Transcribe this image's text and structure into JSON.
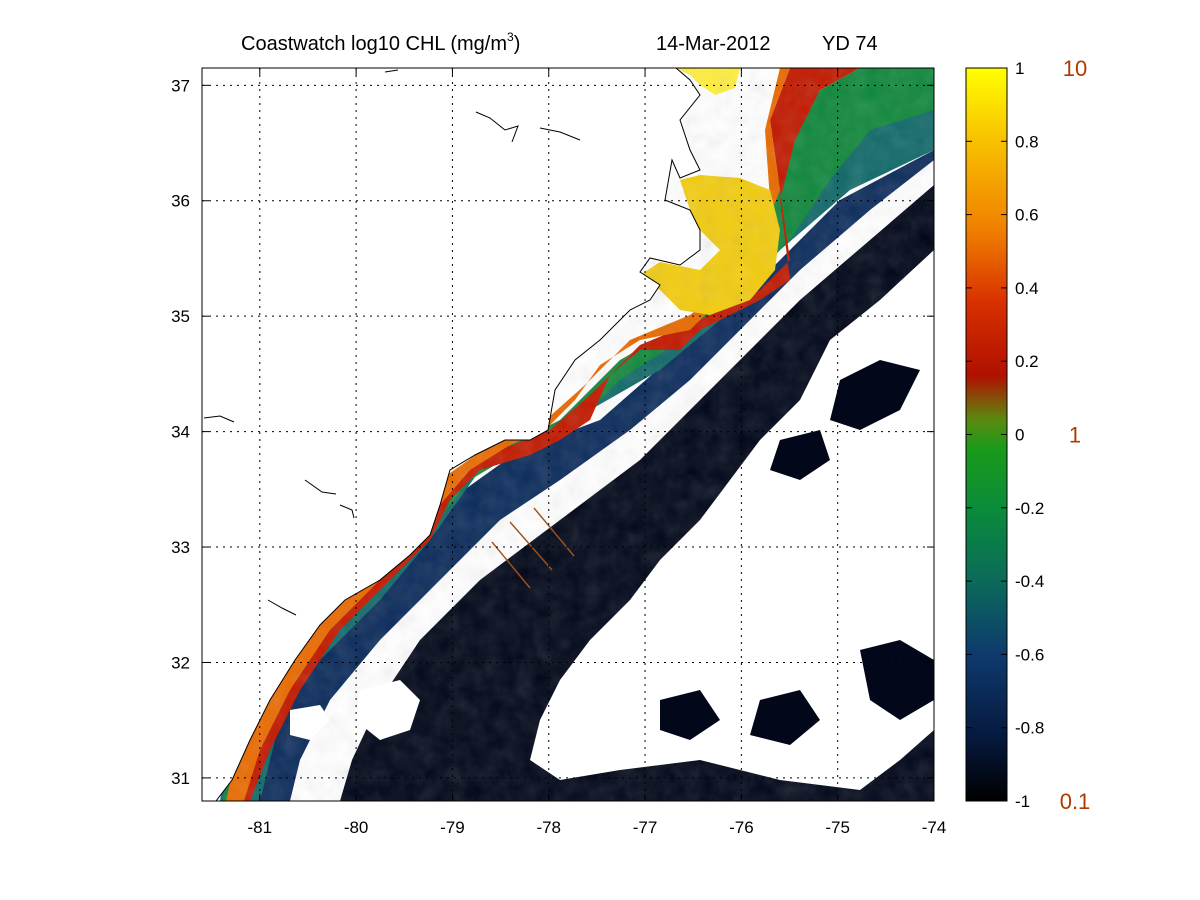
{
  "chart_data": {
    "type": "heatmap",
    "title": {
      "main": "Coastwatch  log10  CHL (mg/m",
      "superscript": "3",
      "close": ")",
      "date": "14-Mar-2012",
      "yearday": "YD 74"
    },
    "xlabel": "",
    "ylabel": "",
    "x_ticks": [
      "-81",
      "-80",
      "-79",
      "-78",
      "-77",
      "-76",
      "-75",
      "-74"
    ],
    "y_ticks": [
      "31",
      "32",
      "33",
      "34",
      "35",
      "36",
      "37"
    ],
    "xlim": [
      -81.6,
      -74
    ],
    "ylim": [
      30.8,
      37.15
    ],
    "grid": true,
    "colorbar": {
      "range": [
        -1,
        1
      ],
      "tick_labels": [
        "1",
        "0.8",
        "0.6",
        "0.4",
        "0.2",
        "0",
        "-0.2",
        "-0.4",
        "-0.6",
        "-0.8",
        "-1"
      ],
      "secondary_labels": [
        "10",
        "1",
        "0.1"
      ],
      "colormap": [
        "#000000",
        "#061a40",
        "#0e3a6e",
        "#0b6a5a",
        "#0a8c3a",
        "#1a9a1a",
        "#5a8a10",
        "#b01000",
        "#d83000",
        "#f08000",
        "#f8c000",
        "#ffff00"
      ]
    },
    "land_color": "#ffffff",
    "cloud_color": "#ffffff"
  }
}
